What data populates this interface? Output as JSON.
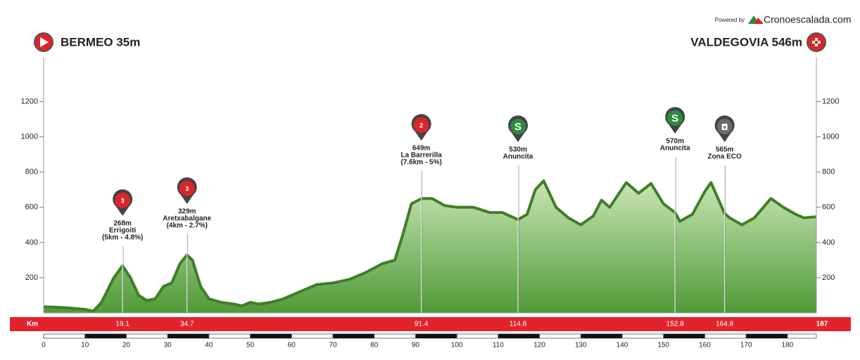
{
  "chart_data": {
    "type": "area",
    "start": "BERMEO 35m",
    "finish": "VALDEGOVIA 546m",
    "powered_by": "Powered by",
    "brand": "Cronoescalada.com",
    "distance_label": "Km",
    "x": [
      0,
      5,
      10,
      12,
      14,
      17,
      19.1,
      21,
      23,
      25,
      27,
      29,
      31,
      33,
      34.7,
      36,
      38,
      40,
      43,
      46,
      48,
      50,
      52,
      55,
      58,
      62,
      66,
      70,
      74,
      78,
      82,
      85,
      87,
      89,
      91.4,
      94,
      97,
      100,
      104,
      108,
      111,
      114.8,
      117,
      119,
      121,
      124,
      127,
      130,
      133,
      135,
      137,
      141,
      144,
      147,
      150,
      152.8,
      154,
      157,
      160,
      161.5,
      164.8,
      166,
      169,
      172,
      176,
      179,
      182,
      184,
      187
    ],
    "values": [
      35,
      30,
      20,
      10,
      60,
      200,
      268,
      200,
      100,
      70,
      80,
      150,
      170,
      280,
      329,
      300,
      150,
      80,
      60,
      50,
      40,
      60,
      50,
      60,
      80,
      120,
      160,
      170,
      190,
      230,
      280,
      300,
      450,
      620,
      649,
      650,
      610,
      600,
      600,
      570,
      570,
      530,
      560,
      700,
      750,
      600,
      540,
      500,
      550,
      640,
      600,
      740,
      680,
      735,
      620,
      570,
      520,
      560,
      690,
      740,
      565,
      540,
      500,
      540,
      650,
      600,
      560,
      540,
      546
    ],
    "color": "#3f7f27",
    "xlim": [
      0,
      187
    ],
    "xticks": [
      0,
      10,
      20,
      30,
      40,
      50,
      60,
      70,
      80,
      90,
      100,
      110,
      120,
      130,
      140,
      150,
      160,
      170,
      180
    ],
    "ylim": [
      0,
      1450
    ],
    "yticks": [
      200,
      400,
      600,
      800,
      1000,
      1200
    ],
    "markers": [
      {
        "km": 19.1,
        "lines": [
          "268m",
          "Errigoiti",
          "(5km - 4.8%)"
        ],
        "badge": "3",
        "color": "#d9262b"
      },
      {
        "km": 34.7,
        "lines": [
          "329m",
          "Aretxabalgane",
          "(4km - 2.7%)"
        ],
        "badge": "3",
        "color": "#d9262b"
      },
      {
        "km": 91.4,
        "lines": [
          "649m",
          "La Barrerilla",
          "(7.6km - 5%)"
        ],
        "badge": "2",
        "color": "#d9262b"
      },
      {
        "km": 114.8,
        "lines": [
          "530m",
          "Anuncita"
        ],
        "badge": "S",
        "color": "#2e8b3e"
      },
      {
        "km": 152.8,
        "lines": [
          "570m",
          "Anuncita"
        ],
        "badge": "S",
        "color": "#2e8b3e"
      },
      {
        "km": 164.8,
        "lines": [
          "565m",
          "Zona ECO"
        ],
        "color": "#6b6b6b"
      }
    ]
  }
}
